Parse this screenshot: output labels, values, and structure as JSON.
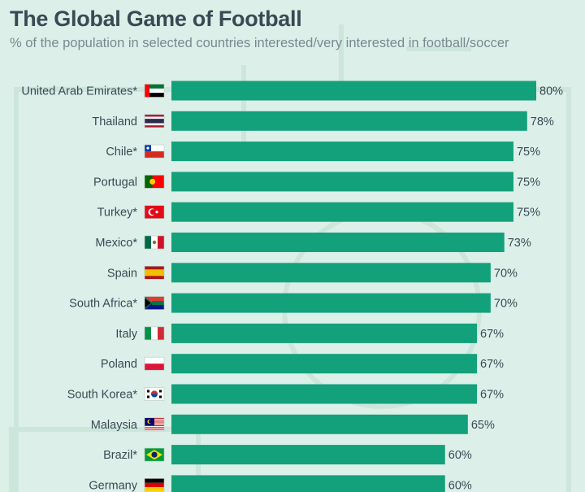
{
  "colors": {
    "bar": "#12a17a",
    "text": "#3a4a54",
    "subtitle": "#7a8990",
    "background": "#dcefe8"
  },
  "chart_data": {
    "type": "bar",
    "orientation": "horizontal",
    "title": "The Global Game of Football",
    "subtitle": "% of the population in selected countries interested/very interested in football/soccer",
    "unit": "%",
    "categories": [
      "United Arab Emirates*",
      "Thailand",
      "Chile*",
      "Portugal",
      "Turkey*",
      "Mexico*",
      "Spain",
      "South Africa*",
      "Italy",
      "Poland",
      "South Korea*",
      "Malaysia",
      "Brazil*",
      "Germany"
    ],
    "values": [
      80,
      78,
      75,
      75,
      75,
      73,
      70,
      70,
      67,
      67,
      67,
      65,
      60,
      60
    ],
    "value_labels": [
      "80%",
      "78%",
      "75%",
      "75%",
      "75%",
      "73%",
      "70%",
      "70%",
      "67%",
      "67%",
      "67%",
      "65%",
      "60%",
      "60%"
    ],
    "flags": [
      "uae-flag",
      "thailand-flag",
      "chile-flag",
      "portugal-flag",
      "turkey-flag",
      "mexico-flag",
      "spain-flag",
      "south-africa-flag",
      "italy-flag",
      "poland-flag",
      "south-korea-flag",
      "malaysia-flag",
      "brazil-flag",
      "germany-flag"
    ],
    "xlim": [
      0,
      80
    ],
    "grid": false,
    "legend": "none"
  }
}
